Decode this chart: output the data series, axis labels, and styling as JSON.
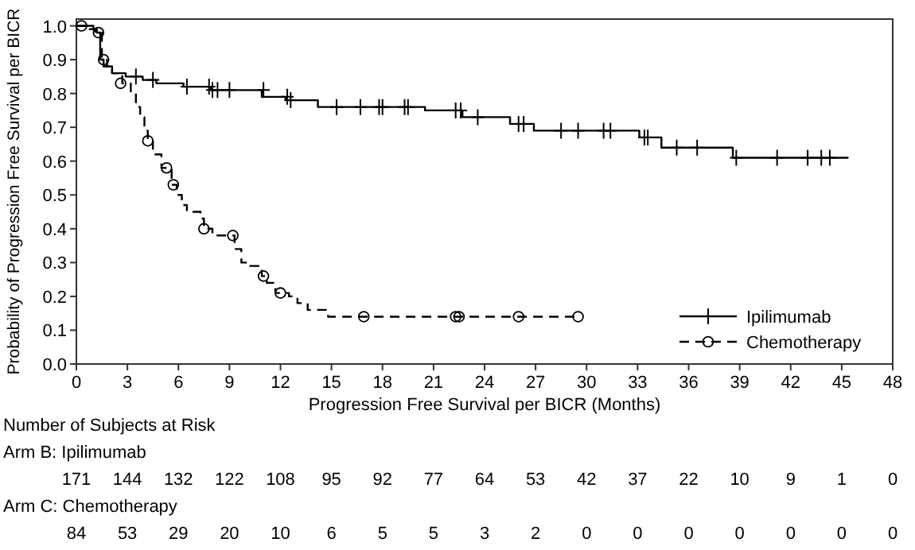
{
  "chart_data": {
    "type": "step",
    "xlabel": "Progression Free Survival per BICR (Months)",
    "ylabel": "Probability of Progression Free Survival per BICR",
    "xlim": [
      0,
      48
    ],
    "xticks": [
      0,
      3,
      6,
      9,
      12,
      15,
      18,
      21,
      24,
      27,
      30,
      33,
      36,
      39,
      42,
      45,
      48
    ],
    "ylim": [
      0,
      1.02
    ],
    "yticks": [
      {
        "value": 0,
        "label": "0.0"
      },
      {
        "value": 0.1,
        "label": "0.1"
      },
      {
        "value": 0.2,
        "label": "0.2"
      },
      {
        "value": 0.3,
        "label": "0.3"
      },
      {
        "value": 0.4,
        "label": "0.4"
      },
      {
        "value": 0.5,
        "label": "0.5"
      },
      {
        "value": 0.6,
        "label": "0.6"
      },
      {
        "value": 0.7,
        "label": "0.7"
      },
      {
        "value": 0.8,
        "label": "0.8"
      },
      {
        "value": 0.9,
        "label": "0.9"
      },
      {
        "value": 1,
        "label": "1.0"
      }
    ],
    "grid": false,
    "legend": "bottom right",
    "series": [
      {
        "name": "Ipilimumab",
        "color": "#000000",
        "line_style": "solid",
        "x": [
          0,
          1.0,
          1.2,
          1.4,
          1.6,
          2.1,
          2.9,
          3.9,
          4.7,
          6.3,
          7.9,
          10.9,
          12.3,
          14.2,
          20.5,
          22.7,
          25.5,
          26.9,
          33.1,
          34.4,
          38.6,
          45.4
        ],
        "values": [
          1.0,
          0.99,
          0.98,
          0.9,
          0.88,
          0.86,
          0.85,
          0.84,
          0.83,
          0.82,
          0.81,
          0.79,
          0.78,
          0.76,
          0.75,
          0.73,
          0.71,
          0.69,
          0.67,
          0.64,
          0.61,
          0.61
        ]
      },
      {
        "type": "scatter",
        "color": "#000000",
        "marker": "cross",
        "x": [
          3.5,
          4.5,
          6.5,
          7.8,
          8.0,
          8.3,
          9.0,
          11.0,
          12.4,
          12.6,
          15.3,
          16.7,
          17.8,
          18.0,
          19.3,
          19.5,
          22.3,
          22.6,
          23.6,
          26.0,
          26.3,
          28.5,
          29.5,
          31.0,
          31.4,
          33.4,
          33.6,
          35.3,
          36.5,
          38.8,
          41.2,
          43.0,
          43.8,
          44.3
        ],
        "values": [
          0.85,
          0.84,
          0.82,
          0.82,
          0.81,
          0.81,
          0.81,
          0.81,
          0.79,
          0.78,
          0.76,
          0.76,
          0.76,
          0.76,
          0.76,
          0.76,
          0.75,
          0.75,
          0.73,
          0.71,
          0.71,
          0.69,
          0.69,
          0.69,
          0.69,
          0.67,
          0.67,
          0.64,
          0.64,
          0.61,
          0.61,
          0.61,
          0.61,
          0.61
        ]
      },
      {
        "name": "Chemotherapy",
        "color": "#000000",
        "line_style": "dashed",
        "x": [
          0,
          0.5,
          1.1,
          1.5,
          1.8,
          2.1,
          2.7,
          3.2,
          3.5,
          3.75,
          4.0,
          4.2,
          4.5,
          5.0,
          5.6,
          5.9,
          6.2,
          6.5,
          7.3,
          7.5,
          8.0,
          9.3,
          9.7,
          10.2,
          10.9,
          11.2,
          11.7,
          12.5,
          13.0,
          13.6,
          14.8,
          29.5
        ],
        "values": [
          1.0,
          0.99,
          0.98,
          0.9,
          0.88,
          0.86,
          0.83,
          0.8,
          0.76,
          0.73,
          0.69,
          0.66,
          0.62,
          0.58,
          0.53,
          0.5,
          0.47,
          0.45,
          0.43,
          0.4,
          0.38,
          0.34,
          0.3,
          0.29,
          0.26,
          0.24,
          0.21,
          0.2,
          0.18,
          0.16,
          0.14,
          0.14
        ]
      },
      {
        "type": "scatter",
        "color": "#000000",
        "marker": "circle",
        "x": [
          0.3,
          1.3,
          1.6,
          2.6,
          4.2,
          5.3,
          5.7,
          7.5,
          9.2,
          11.0,
          12.0,
          16.9,
          22.3,
          22.5,
          26.0,
          29.5
        ],
        "values": [
          1.0,
          0.98,
          0.9,
          0.83,
          0.66,
          0.58,
          0.53,
          0.4,
          0.38,
          0.26,
          0.21,
          0.14,
          0.14,
          0.14,
          0.14,
          0.14
        ]
      }
    ],
    "annotations": [
      "Number of Subjects at Risk",
      "Arm B: Ipilimumab",
      "171 144 132 122 108 95 92 77 64 53 42 37 22 10 9 1 0",
      "Arm C: Chemotherapy",
      "84 53 29 20 10 6 5 5 3 2 0 0 0 0 0 0 0"
    ]
  }
}
